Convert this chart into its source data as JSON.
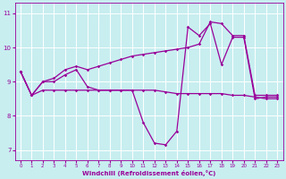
{
  "xlabel": "Windchill (Refroidissement éolien,°C)",
  "background_color": "#c8eef0",
  "grid_color": "#ffffff",
  "line_color": "#990099",
  "xlim": [
    -0.5,
    23.5
  ],
  "ylim": [
    6.7,
    11.3
  ],
  "xticks": [
    0,
    1,
    2,
    3,
    4,
    5,
    6,
    7,
    8,
    9,
    10,
    11,
    12,
    13,
    14,
    15,
    16,
    17,
    18,
    19,
    20,
    21,
    22,
    23
  ],
  "yticks": [
    7,
    8,
    9,
    10,
    11
  ],
  "line1_x": [
    0,
    1,
    2,
    3,
    4,
    5,
    6,
    7,
    8,
    9,
    10,
    11,
    12,
    13,
    14,
    15,
    16,
    17,
    18,
    19,
    20,
    21,
    22,
    23
  ],
  "line1_y": [
    9.3,
    8.6,
    9.0,
    9.0,
    9.2,
    9.35,
    8.85,
    8.75,
    8.75,
    8.75,
    8.75,
    7.8,
    7.2,
    7.15,
    7.55,
    10.6,
    10.35,
    10.7,
    9.5,
    10.3,
    10.3,
    8.5,
    8.55,
    8.55
  ],
  "line2_x": [
    0,
    1,
    2,
    3,
    4,
    5,
    6,
    7,
    8,
    9,
    10,
    11,
    12,
    13,
    14,
    15,
    16,
    17,
    18,
    19,
    20,
    21,
    22,
    23
  ],
  "line2_y": [
    9.3,
    8.6,
    9.0,
    9.1,
    9.35,
    9.45,
    9.35,
    9.45,
    9.55,
    9.65,
    9.75,
    9.8,
    9.85,
    9.9,
    9.95,
    10.0,
    10.1,
    10.75,
    10.7,
    10.35,
    10.35,
    8.6,
    8.6,
    8.6
  ],
  "line3_x": [
    0,
    1,
    2,
    3,
    4,
    5,
    6,
    7,
    8,
    9,
    10,
    11,
    12,
    13,
    14,
    15,
    16,
    17,
    18,
    19,
    20,
    21,
    22,
    23
  ],
  "line3_y": [
    9.3,
    8.6,
    8.75,
    8.75,
    8.75,
    8.75,
    8.75,
    8.75,
    8.75,
    8.75,
    8.75,
    8.75,
    8.75,
    8.7,
    8.65,
    8.65,
    8.65,
    8.65,
    8.65,
    8.6,
    8.6,
    8.55,
    8.5,
    8.5
  ]
}
